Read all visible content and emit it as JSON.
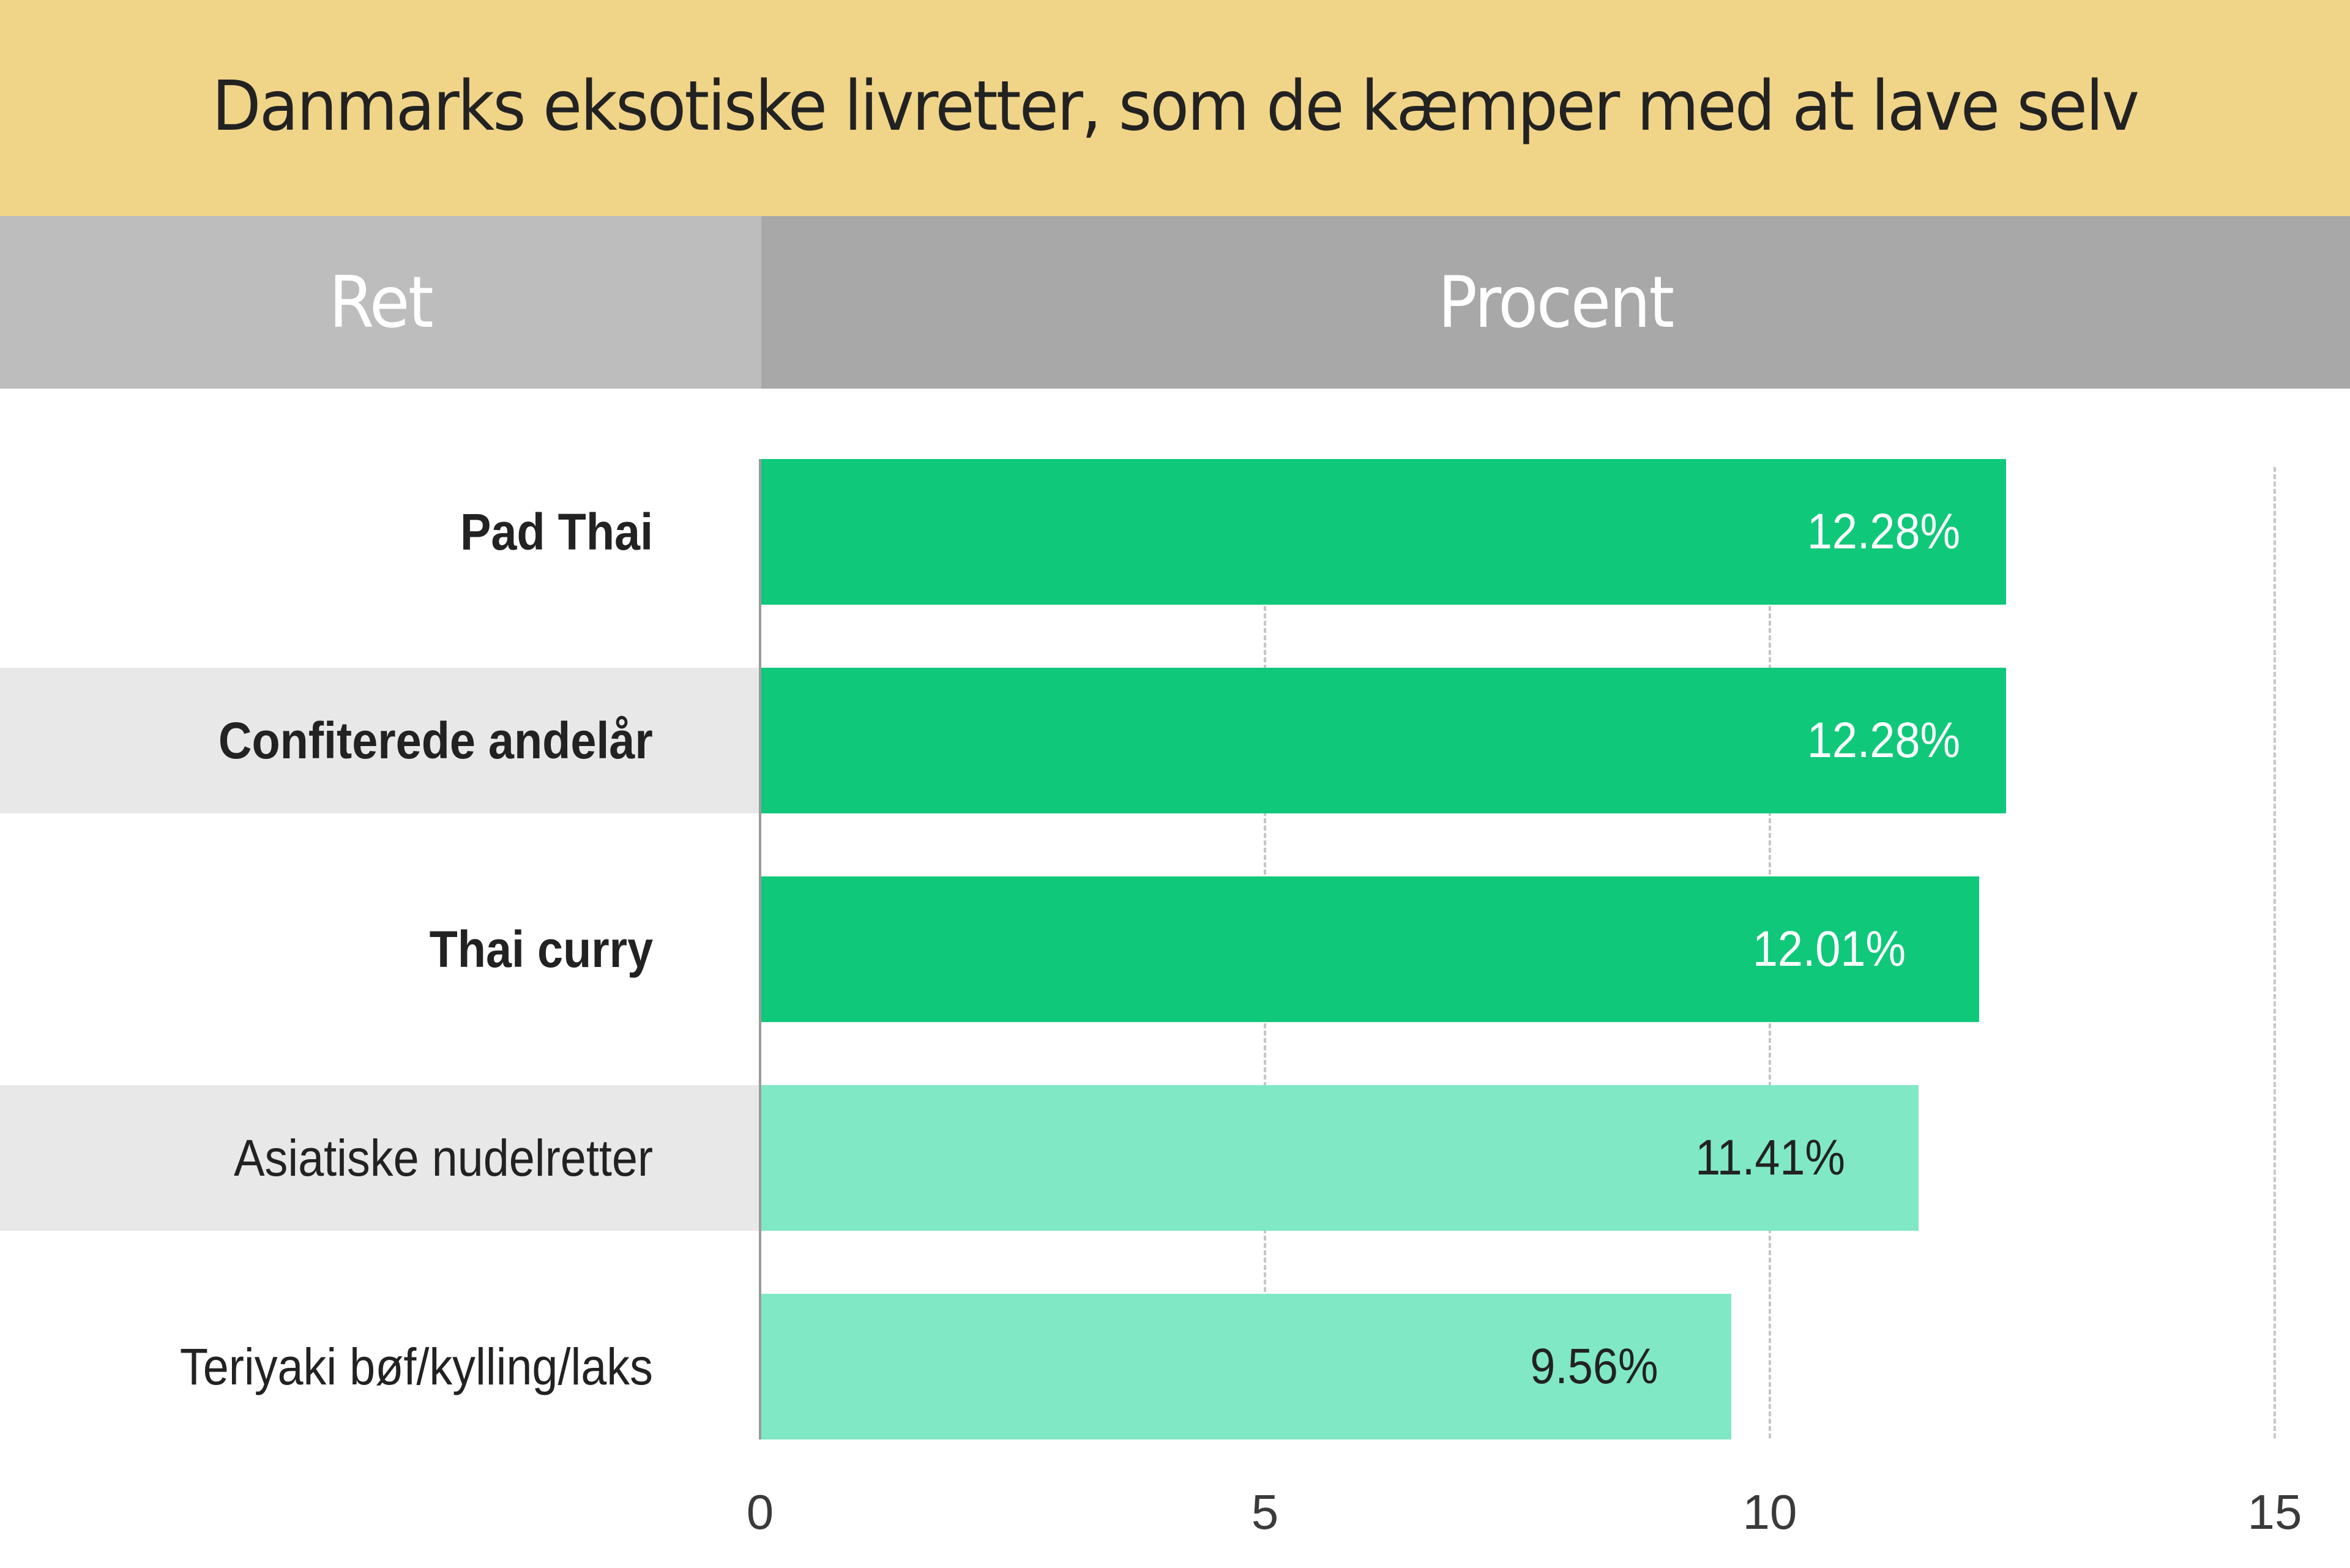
{
  "title": "Danmarks eksotiske livretter, som de kæmper med at lave selv",
  "header": {
    "left_label": "Ret",
    "right_label": "Procent"
  },
  "colors": {
    "title_band": "#f0d488",
    "header_left": "#bdbdbd",
    "header_right": "#a8a8a8",
    "bar_highlight": "#10c87a",
    "bar_normal": "#80e8c4",
    "stripe": "#e8e8e8",
    "label_on_highlight": "#ffffff",
    "label_on_normal": "#222222"
  },
  "rows": [
    {
      "label": "Pad Thai",
      "value": 12.28,
      "value_label": "12.28%",
      "highlight": true,
      "striped": false
    },
    {
      "label": "Confiterede andelår",
      "value": 12.28,
      "value_label": "12.28%",
      "highlight": true,
      "striped": true
    },
    {
      "label": "Thai curry",
      "value": 12.01,
      "value_label": "12.01%",
      "highlight": true,
      "striped": false
    },
    {
      "label": "Asiatiske nudelretter",
      "value": 11.41,
      "value_label": "11.41%",
      "highlight": false,
      "striped": true
    },
    {
      "label": "Teriyaki bøf/kylling/laks",
      "value": 9.56,
      "value_label": "9.56%",
      "highlight": false,
      "striped": false
    }
  ],
  "axis": {
    "ticks": [
      0,
      5,
      10,
      15
    ],
    "tick_labels": [
      "0",
      "5",
      "10",
      "15"
    ]
  },
  "chart_data": {
    "type": "bar",
    "orientation": "horizontal",
    "title": "Danmarks eksotiske livretter, som de kæmper med at lave selv",
    "categories": [
      "Pad Thai",
      "Confiterede andelår",
      "Thai curry",
      "Asiatiske nudelretter",
      "Teriyaki bøf/kylling/laks"
    ],
    "values": [
      12.28,
      12.28,
      12.01,
      11.41,
      9.56
    ],
    "value_labels": [
      "12.28%",
      "12.28%",
      "12.01%",
      "11.41%",
      "9.56%"
    ],
    "highlighted": [
      true,
      true,
      true,
      false,
      false
    ],
    "xlabel": "Procent",
    "ylabel": "Ret",
    "xlim": [
      0,
      15
    ],
    "xticks": [
      0,
      5,
      10,
      15
    ],
    "grid": "vertical dashed at 5, 10, 15",
    "legend": "none"
  }
}
